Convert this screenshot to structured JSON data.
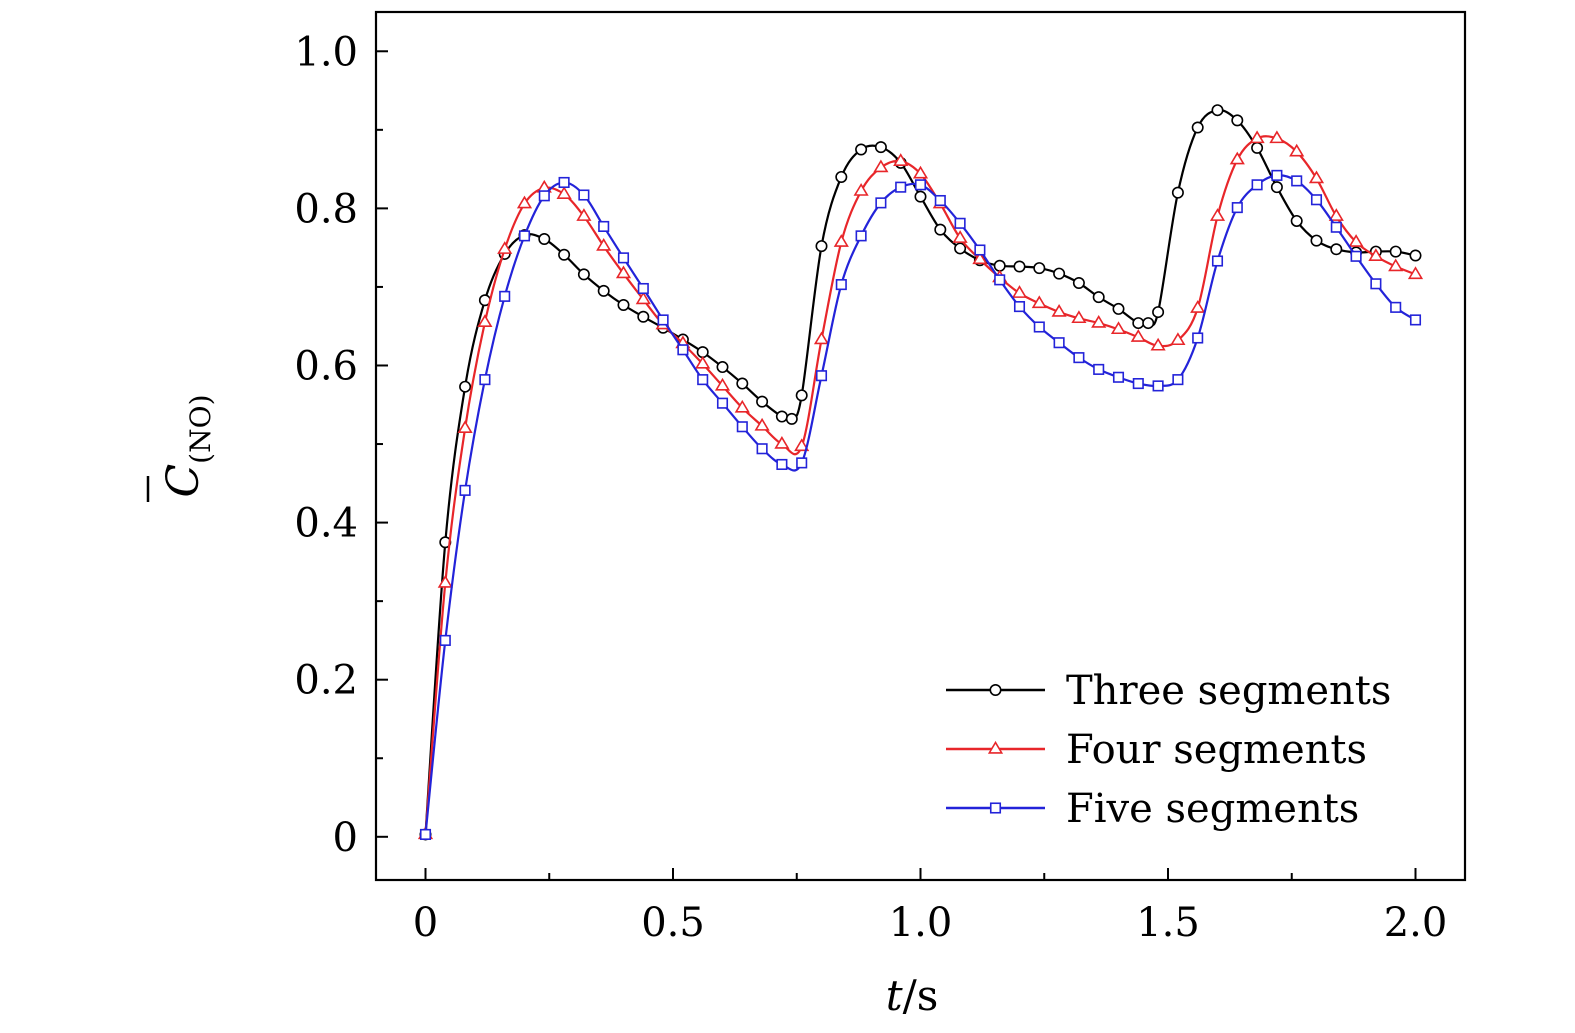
{
  "chart_data": {
    "type": "line",
    "xlabel": {
      "italic": "t",
      "rest": "/s"
    },
    "ylabel": {
      "symbol": "C",
      "subscript": "(NO)"
    },
    "xlim": [
      -0.1,
      2.1
    ],
    "ylim": [
      -0.055,
      1.05
    ],
    "xticks": [
      0,
      0.5,
      1.0,
      1.5,
      2.0
    ],
    "xtick_labels": [
      "0",
      "0.5",
      "1.0",
      "1.5",
      "2.0"
    ],
    "yticks": [
      0,
      0.2,
      0.4,
      0.6,
      0.8,
      1.0
    ],
    "ytick_labels": [
      "0",
      "0.2",
      "0.4",
      "0.6",
      "0.8",
      "1.0"
    ],
    "grid": false,
    "legend_position": "bottom-right",
    "series": [
      {
        "name": "Three segments",
        "color": "#000000",
        "marker": "circle",
        "x": [
          0,
          0.04,
          0.08,
          0.12,
          0.16,
          0.2,
          0.24,
          0.28,
          0.32,
          0.36,
          0.4,
          0.44,
          0.48,
          0.52,
          0.56,
          0.6,
          0.64,
          0.68,
          0.72,
          0.74,
          0.76,
          0.8,
          0.84,
          0.88,
          0.92,
          0.96,
          1.0,
          1.04,
          1.08,
          1.12,
          1.16,
          1.2,
          1.24,
          1.28,
          1.32,
          1.36,
          1.4,
          1.44,
          1.46,
          1.48,
          1.52,
          1.56,
          1.6,
          1.64,
          1.68,
          1.72,
          1.76,
          1.8,
          1.84,
          1.88,
          1.92,
          1.96,
          2.0
        ],
        "y": [
          0.003,
          0.375,
          0.573,
          0.683,
          0.742,
          0.766,
          0.761,
          0.741,
          0.716,
          0.695,
          0.677,
          0.662,
          0.648,
          0.633,
          0.617,
          0.598,
          0.577,
          0.554,
          0.535,
          0.532,
          0.562,
          0.752,
          0.84,
          0.875,
          0.878,
          0.858,
          0.815,
          0.773,
          0.749,
          0.734,
          0.727,
          0.726,
          0.724,
          0.717,
          0.705,
          0.687,
          0.672,
          0.654,
          0.654,
          0.668,
          0.82,
          0.903,
          0.925,
          0.912,
          0.877,
          0.827,
          0.784,
          0.759,
          0.748,
          0.744,
          0.745,
          0.745,
          0.74
        ]
      },
      {
        "name": "Four segments",
        "color": "#e8262a",
        "marker": "triangle",
        "x": [
          0,
          0.04,
          0.08,
          0.12,
          0.16,
          0.2,
          0.24,
          0.28,
          0.32,
          0.36,
          0.4,
          0.44,
          0.48,
          0.52,
          0.56,
          0.6,
          0.64,
          0.68,
          0.72,
          0.76,
          0.8,
          0.84,
          0.88,
          0.92,
          0.96,
          1.0,
          1.04,
          1.08,
          1.12,
          1.16,
          1.2,
          1.24,
          1.28,
          1.32,
          1.36,
          1.4,
          1.44,
          1.48,
          1.52,
          1.56,
          1.6,
          1.64,
          1.68,
          1.72,
          1.76,
          1.8,
          1.84,
          1.88,
          1.92,
          1.96,
          2.0
        ],
        "y": [
          0.003,
          0.323,
          0.52,
          0.655,
          0.748,
          0.806,
          0.826,
          0.818,
          0.79,
          0.752,
          0.717,
          0.684,
          0.652,
          0.628,
          0.602,
          0.574,
          0.546,
          0.523,
          0.5,
          0.497,
          0.633,
          0.757,
          0.822,
          0.852,
          0.86,
          0.844,
          0.806,
          0.762,
          0.735,
          0.712,
          0.692,
          0.679,
          0.668,
          0.66,
          0.654,
          0.646,
          0.636,
          0.625,
          0.632,
          0.673,
          0.79,
          0.862,
          0.889,
          0.889,
          0.872,
          0.838,
          0.79,
          0.757,
          0.739,
          0.726,
          0.716
        ]
      },
      {
        "name": "Five segments",
        "color": "#2323d9",
        "marker": "square",
        "x": [
          0,
          0.04,
          0.08,
          0.12,
          0.16,
          0.2,
          0.24,
          0.28,
          0.32,
          0.36,
          0.4,
          0.44,
          0.48,
          0.52,
          0.56,
          0.6,
          0.64,
          0.68,
          0.72,
          0.76,
          0.8,
          0.84,
          0.88,
          0.92,
          0.96,
          1.0,
          1.04,
          1.08,
          1.12,
          1.16,
          1.2,
          1.24,
          1.28,
          1.32,
          1.36,
          1.4,
          1.44,
          1.48,
          1.52,
          1.56,
          1.6,
          1.64,
          1.68,
          1.72,
          1.76,
          1.8,
          1.84,
          1.88,
          1.92,
          1.96,
          2.0
        ],
        "y": [
          0.003,
          0.25,
          0.441,
          0.582,
          0.688,
          0.765,
          0.816,
          0.833,
          0.817,
          0.777,
          0.737,
          0.698,
          0.658,
          0.62,
          0.582,
          0.552,
          0.522,
          0.494,
          0.474,
          0.476,
          0.587,
          0.703,
          0.765,
          0.807,
          0.827,
          0.83,
          0.81,
          0.781,
          0.747,
          0.709,
          0.675,
          0.649,
          0.629,
          0.61,
          0.595,
          0.585,
          0.577,
          0.574,
          0.582,
          0.635,
          0.733,
          0.801,
          0.83,
          0.842,
          0.835,
          0.811,
          0.776,
          0.739,
          0.704,
          0.674,
          0.658
        ]
      }
    ]
  }
}
